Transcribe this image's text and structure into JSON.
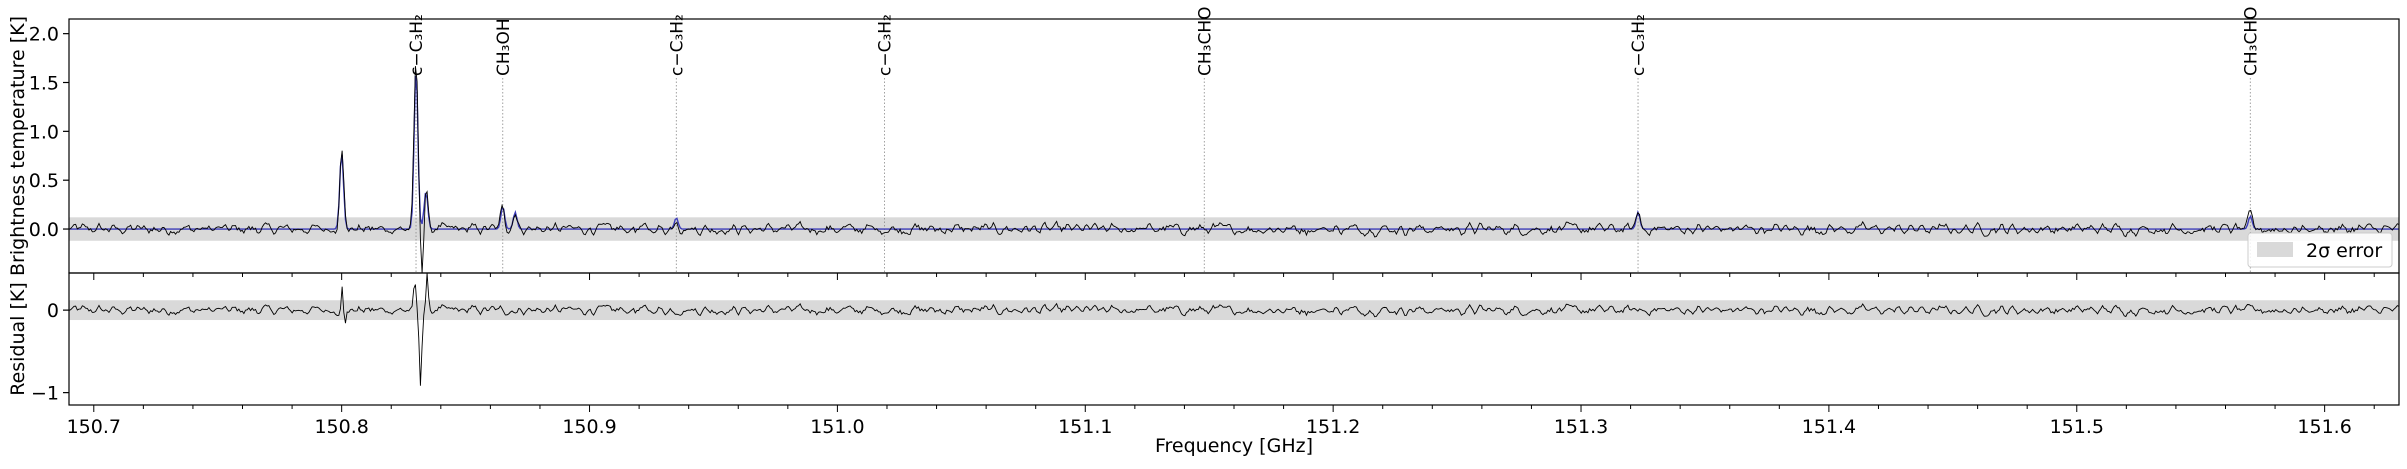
{
  "chart_data": {
    "type": "line",
    "xlabel": "Frequency [GHz]",
    "xlim": [
      150.69,
      151.63
    ],
    "x_ticks": [
      "150.7",
      "150.8",
      "150.9",
      "151.0",
      "151.1",
      "151.2",
      "151.3",
      "151.4",
      "151.5",
      "151.6"
    ],
    "top_panel": {
      "ylabel": "Brightness temperature [K]",
      "ylim": [
        -0.45,
        2.15
      ],
      "y_ticks": [
        "0.0",
        "0.5",
        "1.0",
        "1.5",
        "2.0"
      ],
      "error_band": {
        "lower": -0.12,
        "upper": 0.12
      },
      "legend": {
        "position": "lower-right",
        "label": "2σ error"
      },
      "peaks": [
        {
          "x": 150.8,
          "height": 0.82
        },
        {
          "x": 150.83,
          "height": 1.72
        },
        {
          "x": 150.834,
          "height": 0.4
        },
        {
          "x": 150.865,
          "height": 0.24
        },
        {
          "x": 150.87,
          "height": 0.18
        },
        {
          "x": 150.935,
          "height": 0.12
        },
        {
          "x": 151.323,
          "height": 0.18
        },
        {
          "x": 151.57,
          "height": 0.14
        }
      ],
      "line_markers": [
        {
          "x": 150.83,
          "label": "c−C₃H₂"
        },
        {
          "x": 150.865,
          "label": "CH₃OH"
        },
        {
          "x": 150.935,
          "label": "c−C₃H₂"
        },
        {
          "x": 151.019,
          "label": "c−C₃H₂"
        },
        {
          "x": 151.148,
          "label": "CH₃CHO"
        },
        {
          "x": 151.323,
          "label": "c−C₃H₂"
        },
        {
          "x": 151.57,
          "label": "CH₃CHO"
        }
      ]
    },
    "bottom_panel": {
      "ylabel": "Residual [K]",
      "ylim": [
        -1.15,
        0.45
      ],
      "y_ticks": [
        "0",
        "−1"
      ],
      "error_band": {
        "lower": -0.12,
        "upper": 0.12
      }
    },
    "series": [
      {
        "key": "observed",
        "color": "#000000"
      },
      {
        "key": "model",
        "color": "#3b3bb8"
      }
    ]
  }
}
